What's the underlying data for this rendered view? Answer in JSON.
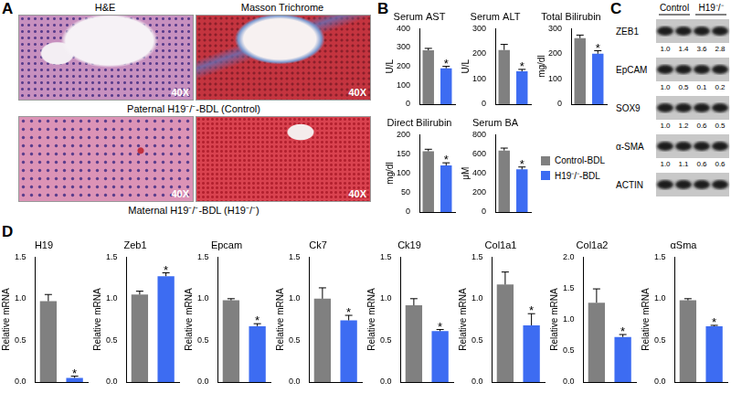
{
  "panel_labels": [
    "A",
    "B",
    "C",
    "D"
  ],
  "histology": {
    "stains": [
      "H&E",
      "Masson Trichrome"
    ],
    "magnification": "40X",
    "captions": [
      "Paternal H19⁻/⁻-BDL (Control)",
      "Maternal H19⁻/⁻-BDL (H19⁻/⁻)"
    ]
  },
  "groups": [
    {
      "name": "Control-BDL",
      "color": "#808080"
    },
    {
      "name": "H19⁻/⁻-BDL",
      "color": "#3d6cf2"
    }
  ],
  "western_blot": {
    "groups": [
      "Control",
      "H19⁻/⁻"
    ],
    "bands": [
      {
        "name": "ZEB1",
        "quant": [
          "1.0",
          "1.4",
          "3.6",
          "2.8"
        ]
      },
      {
        "name": "EpCAM",
        "quant": [
          "1.0",
          "0.5",
          "0.1",
          "0.2"
        ]
      },
      {
        "name": "SOX9",
        "quant": [
          "1.0",
          "1.2",
          "0.6",
          "0.5"
        ]
      },
      {
        "name": "α-SMA",
        "quant": [
          "1.0",
          "1.1",
          "0.6",
          "0.6"
        ]
      },
      {
        "name": "ACTIN"
      }
    ]
  },
  "chart_data": [
    {
      "type": "bar",
      "title": "Serum AST",
      "y_label": "U/L",
      "categories": [
        null,
        null
      ],
      "values": [
        285,
        190
      ],
      "errors": [
        10,
        10
      ],
      "ylim": [
        0,
        400
      ],
      "yticks": [
        0,
        100,
        200,
        300,
        400
      ],
      "grid": false,
      "tick_labels": "y",
      "annotations": [
        {
          "text": "*",
          "index": 1
        }
      ]
    },
    {
      "type": "bar",
      "title": "Serum ALT",
      "y_label": "U/L",
      "categories": [
        null,
        null
      ],
      "values": [
        215,
        130
      ],
      "errors": [
        22,
        8
      ],
      "ylim": [
        0,
        300
      ],
      "yticks": [
        0,
        100,
        200,
        300
      ],
      "grid": false,
      "tick_labels": "y",
      "annotations": [
        {
          "text": "*",
          "index": 1
        }
      ]
    },
    {
      "type": "bar",
      "title": "Total Bilirubin",
      "y_label": "mg/dl",
      "categories": [
        null,
        null
      ],
      "values": [
        262,
        200
      ],
      "errors": [
        12,
        12
      ],
      "ylim": [
        0,
        300
      ],
      "yticks": [
        0,
        100,
        200,
        300
      ],
      "grid": false,
      "tick_labels": "y",
      "annotations": [
        {
          "text": "*",
          "index": 1
        }
      ]
    },
    {
      "type": "bar",
      "title": "Direct Bilirubin",
      "y_label": "mg/dl",
      "categories": [
        null,
        null
      ],
      "values": [
        157,
        120
      ],
      "errors": [
        5,
        7
      ],
      "ylim": [
        0,
        200
      ],
      "yticks": [
        0,
        50,
        100,
        150,
        200
      ],
      "grid": false,
      "tick_labels": "y",
      "annotations": [
        {
          "text": "*",
          "index": 1
        }
      ]
    },
    {
      "type": "bar",
      "title": "Serum BA",
      "y_label": "μM",
      "categories": [
        null,
        null
      ],
      "values": [
        635,
        440
      ],
      "errors": [
        25,
        25
      ],
      "ylim": [
        0,
        800
      ],
      "yticks": [
        0,
        200,
        400,
        600,
        800
      ],
      "grid": false,
      "tick_labels": "y",
      "annotations": [
        {
          "text": "*",
          "index": 1
        }
      ]
    },
    {
      "type": "bar",
      "title": "H19",
      "y_label": "Relative mRNA",
      "categories": [
        null,
        null
      ],
      "values": [
        0.97,
        0.05
      ],
      "errors": [
        0.08,
        0.02
      ],
      "ylim": [
        0,
        1.5
      ],
      "yticks": [
        {
          "value": 0,
          "label": "0.0"
        },
        {
          "value": 0.5,
          "label": "0.5"
        },
        {
          "value": 1,
          "label": "1.0"
        },
        {
          "value": 1.5,
          "label": "1.5"
        }
      ],
      "grid": false,
      "tick_labels": "y",
      "annotations": [
        {
          "text": "*",
          "index": 1
        }
      ]
    },
    {
      "type": "bar",
      "title": "Zeb1",
      "y_label": "Relative mRNA",
      "categories": [
        null,
        null
      ],
      "values": [
        1.05,
        1.27
      ],
      "errors": [
        0.04,
        0.04
      ],
      "ylim": [
        0,
        1.5
      ],
      "yticks": [
        {
          "value": 0,
          "label": "0.0"
        },
        {
          "value": 0.5,
          "label": "0.5"
        },
        {
          "value": 1,
          "label": "1.0"
        },
        {
          "value": 1.5,
          "label": "1.5"
        }
      ],
      "grid": false,
      "tick_labels": "y",
      "annotations": [
        {
          "text": "*",
          "index": 1
        }
      ]
    },
    {
      "type": "bar",
      "title": "Epcam",
      "y_label": "Relative mRNA",
      "categories": [
        null,
        null
      ],
      "values": [
        0.98,
        0.67
      ],
      "errors": [
        0.02,
        0.03
      ],
      "ylim": [
        0,
        1.5
      ],
      "yticks": [
        {
          "value": 0,
          "label": "0.0"
        },
        {
          "value": 0.5,
          "label": "0.5"
        },
        {
          "value": 1,
          "label": "1.0"
        },
        {
          "value": 1.5,
          "label": "1.5"
        }
      ],
      "grid": false,
      "tick_labels": "y",
      "annotations": [
        {
          "text": "*",
          "index": 1
        }
      ]
    },
    {
      "type": "bar",
      "title": "Ck7",
      "y_label": "Relative mRNA",
      "categories": [
        null,
        null
      ],
      "values": [
        1.0,
        0.74
      ],
      "errors": [
        0.13,
        0.06
      ],
      "ylim": [
        0,
        1.5
      ],
      "yticks": [
        {
          "value": 0,
          "label": "0.0"
        },
        {
          "value": 0.5,
          "label": "0.5"
        },
        {
          "value": 1,
          "label": "1.0"
        },
        {
          "value": 1.5,
          "label": "1.5"
        }
      ],
      "grid": false,
      "tick_labels": "y",
      "annotations": [
        {
          "text": "*",
          "index": 1
        }
      ]
    },
    {
      "type": "bar",
      "title": "Ck19",
      "y_label": "Relative mRNA",
      "categories": [
        null,
        null
      ],
      "values": [
        0.92,
        0.61
      ],
      "errors": [
        0.08,
        0.02
      ],
      "ylim": [
        0,
        1.5
      ],
      "yticks": [
        {
          "value": 0,
          "label": "0.0"
        },
        {
          "value": 0.5,
          "label": "0.5"
        },
        {
          "value": 1,
          "label": "1.0"
        },
        {
          "value": 1.5,
          "label": "1.5"
        }
      ],
      "grid": false,
      "tick_labels": "y",
      "annotations": [
        {
          "text": "*",
          "index": 1
        }
      ]
    },
    {
      "type": "bar",
      "title": "Col1a1",
      "y_label": "Relative mRNA",
      "categories": [
        null,
        null
      ],
      "values": [
        1.17,
        0.68
      ],
      "errors": [
        0.15,
        0.14
      ],
      "ylim": [
        0,
        1.5
      ],
      "yticks": [
        {
          "value": 0,
          "label": "0.0"
        },
        {
          "value": 0.5,
          "label": "0.5"
        },
        {
          "value": 1,
          "label": "1.0"
        },
        {
          "value": 1.5,
          "label": "1.5"
        }
      ],
      "grid": false,
      "tick_labels": "y",
      "annotations": [
        {
          "text": "*",
          "index": 1
        }
      ]
    },
    {
      "type": "bar",
      "title": "Col1a2",
      "y_label": "Relative mRNA",
      "categories": [
        null,
        null
      ],
      "values": [
        1.27,
        0.72
      ],
      "errors": [
        0.22,
        0.04
      ],
      "ylim": [
        0,
        2
      ],
      "yticks": [
        {
          "value": 0,
          "label": "0.0"
        },
        {
          "value": 0.5,
          "label": "0.5"
        },
        {
          "value": 1,
          "label": "1.0"
        },
        {
          "value": 1.5,
          "label": "1.5"
        },
        {
          "value": 2,
          "label": "2.0"
        }
      ],
      "grid": false,
      "tick_labels": "y",
      "annotations": [
        {
          "text": "*",
          "index": 1
        }
      ]
    },
    {
      "type": "bar",
      "title": "αSma",
      "y_label": "Relative mRNA",
      "categories": [
        null,
        null
      ],
      "values": [
        0.98,
        0.67
      ],
      "errors": [
        0.02,
        0.01
      ],
      "ylim": [
        0,
        1.5
      ],
      "yticks": [
        {
          "value": 0,
          "label": "0.0"
        },
        {
          "value": 0.5,
          "label": "0.5"
        },
        {
          "value": 1,
          "label": "1.0"
        },
        {
          "value": 1.5,
          "label": "1.5"
        }
      ],
      "grid": false,
      "tick_labels": "y",
      "annotations": [
        {
          "text": "*",
          "index": 1
        }
      ]
    }
  ]
}
